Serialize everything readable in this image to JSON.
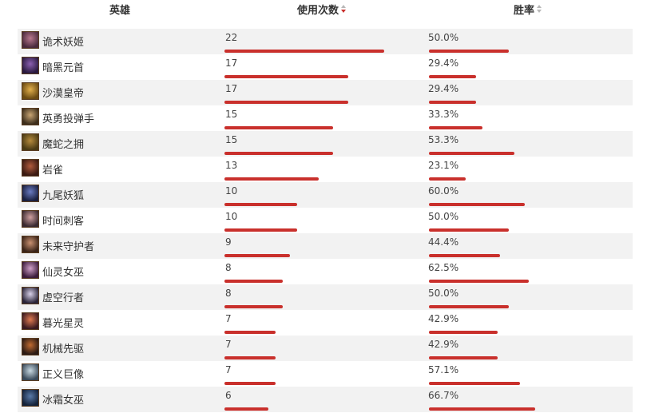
{
  "header": {
    "hero": "英雄",
    "usage": "使用次数",
    "winrate": "胜率"
  },
  "colors": {
    "bar": "#c9302c",
    "stripe": "#f2f2f2",
    "sort_active": "#c9302c",
    "sort_inactive": "#b8b8b8"
  },
  "rows": [
    {
      "name": "诡术妖姬",
      "usage": "22",
      "usage_value": 22,
      "winrate": "50.0%",
      "winrate_value": 50.0,
      "avatar_icon": "leblanc-portrait-icon",
      "avatar_colors": [
        "#4a2a3c",
        "#b9788e"
      ]
    },
    {
      "name": "暗黑元首",
      "usage": "17",
      "usage_value": 17,
      "winrate": "29.4%",
      "winrate_value": 29.4,
      "avatar_icon": "syndra-portrait-icon",
      "avatar_colors": [
        "#2a1a3f",
        "#8c5fb0"
      ]
    },
    {
      "name": "沙漠皇帝",
      "usage": "17",
      "usage_value": 17,
      "winrate": "29.4%",
      "winrate_value": 29.4,
      "avatar_icon": "azir-portrait-icon",
      "avatar_colors": [
        "#6b4a12",
        "#e3b04b"
      ]
    },
    {
      "name": "英勇投弹手",
      "usage": "15",
      "usage_value": 15,
      "winrate": "33.3%",
      "winrate_value": 33.3,
      "avatar_icon": "corki-portrait-icon",
      "avatar_colors": [
        "#3c2e1c",
        "#c8a473"
      ]
    },
    {
      "name": "魔蛇之拥",
      "usage": "15",
      "usage_value": 15,
      "winrate": "53.3%",
      "winrate_value": 53.3,
      "avatar_icon": "cassiopeia-portrait-icon",
      "avatar_colors": [
        "#4a3a14",
        "#b58a3c"
      ]
    },
    {
      "name": "岩雀",
      "usage": "13",
      "usage_value": 13,
      "winrate": "23.1%",
      "winrate_value": 23.1,
      "avatar_icon": "taliyah-portrait-icon",
      "avatar_colors": [
        "#3a1a12",
        "#b05a3c"
      ]
    },
    {
      "name": "九尾妖狐",
      "usage": "10",
      "usage_value": 10,
      "winrate": "60.0%",
      "winrate_value": 60.0,
      "avatar_icon": "ahri-portrait-icon",
      "avatar_colors": [
        "#1a2040",
        "#6a7ac0"
      ]
    },
    {
      "name": "时间刺客",
      "usage": "10",
      "usage_value": 10,
      "winrate": "50.0%",
      "winrate_value": 50.0,
      "avatar_icon": "ekko-portrait-icon",
      "avatar_colors": [
        "#3a2a30",
        "#d0a0a0"
      ]
    },
    {
      "name": "未来守护者",
      "usage": "9",
      "usage_value": 9,
      "winrate": "44.4%",
      "winrate_value": 44.4,
      "avatar_icon": "jayce-portrait-icon",
      "avatar_colors": [
        "#3a2418",
        "#c89070"
      ]
    },
    {
      "name": "仙灵女巫",
      "usage": "8",
      "usage_value": 8,
      "winrate": "62.5%",
      "winrate_value": 62.5,
      "avatar_icon": "lulu-portrait-icon",
      "avatar_colors": [
        "#3c1c3c",
        "#d0a0c8"
      ]
    },
    {
      "name": "虚空行者",
      "usage": "8",
      "usage_value": 8,
      "winrate": "50.0%",
      "winrate_value": 50.0,
      "avatar_icon": "kassadin-portrait-icon",
      "avatar_colors": [
        "#2a2438",
        "#d8d0e8"
      ]
    },
    {
      "name": "暮光星灵",
      "usage": "7",
      "usage_value": 7,
      "winrate": "42.9%",
      "winrate_value": 42.9,
      "avatar_icon": "zoe-portrait-icon",
      "avatar_colors": [
        "#3a1a20",
        "#e07a50"
      ]
    },
    {
      "name": "机械先驱",
      "usage": "7",
      "usage_value": 7,
      "winrate": "42.9%",
      "winrate_value": 42.9,
      "avatar_icon": "viktor-portrait-icon",
      "avatar_colors": [
        "#2a1a14",
        "#c06a30"
      ]
    },
    {
      "name": "正义巨像",
      "usage": "7",
      "usage_value": 7,
      "winrate": "57.1%",
      "winrate_value": 57.1,
      "avatar_icon": "galio-portrait-icon",
      "avatar_colors": [
        "#3a4a5a",
        "#c8d8e0"
      ]
    },
    {
      "name": "冰霜女巫",
      "usage": "6",
      "usage_value": 6,
      "winrate": "66.7%",
      "winrate_value": 66.7,
      "avatar_icon": "lissandra-portrait-icon",
      "avatar_colors": [
        "#14223a",
        "#5a7aa8"
      ]
    }
  ]
}
